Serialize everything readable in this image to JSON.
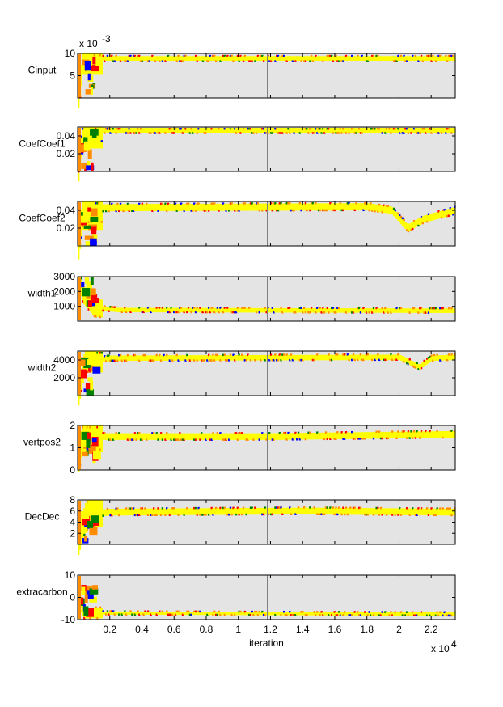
{
  "chart_data": {
    "type": "line",
    "xlabel": "iteration",
    "x_exponent_label": "x 10",
    "x_exponent_power": "4",
    "xlim": [
      0,
      23500
    ],
    "x_ticks": [
      2000,
      4000,
      6000,
      8000,
      10000,
      12000,
      14000,
      16000,
      18000,
      20000,
      22000
    ],
    "x_tick_labels": [
      "0.2",
      "0.4",
      "0.6",
      "0.8",
      "1",
      "1.2",
      "1.4",
      "1.6",
      "1.8",
      "2",
      "2.2"
    ],
    "vertical_marker_x": 11800,
    "colors": {
      "trace": "#ffff00",
      "band": "#ff8c00",
      "outlier1": "#ff0000",
      "outlier2": "#0000ff",
      "outlier3": "#008000",
      "bg": "#e4e4e4"
    },
    "panels": [
      {
        "ylabel": "Cinput",
        "ylim": [
          0,
          0.01
        ],
        "ticks": [
          0.005,
          0.01
        ],
        "tick_labels": [
          "5",
          "10"
        ],
        "scale_label": "x 10",
        "scale_power": "-3",
        "trend": [
          [
            0,
            0.0
          ],
          [
            300,
            0.0085
          ],
          [
            1500,
            0.0088
          ],
          [
            23500,
            0.0088
          ]
        ],
        "spread": 0.0006
      },
      {
        "ylabel": "CoefCoef1",
        "ylim": [
          0,
          0.05
        ],
        "ticks": [
          0.02,
          0.04
        ],
        "tick_labels": [
          "0.02",
          "0.04"
        ],
        "trend": [
          [
            0,
            0.0
          ],
          [
            300,
            0.045
          ],
          [
            1500,
            0.046
          ],
          [
            23500,
            0.046
          ]
        ],
        "spread": 0.003
      },
      {
        "ylabel": "CoefCoef2",
        "ylim": [
          0,
          0.05
        ],
        "ticks": [
          0.02,
          0.04
        ],
        "tick_labels": [
          "0.02",
          "0.04"
        ],
        "trend": [
          [
            0,
            0.0
          ],
          [
            300,
            0.042
          ],
          [
            2000,
            0.043
          ],
          [
            18000,
            0.044
          ],
          [
            19500,
            0.04
          ],
          [
            20500,
            0.02
          ],
          [
            21500,
            0.03
          ],
          [
            23500,
            0.04
          ]
        ],
        "spread": 0.004
      },
      {
        "ylabel": "width1",
        "ylim": [
          0,
          3000
        ],
        "ticks": [
          1000,
          2000,
          3000
        ],
        "tick_labels": [
          "1000",
          "2000",
          "3000"
        ],
        "trend": [
          [
            0,
            3000
          ],
          [
            300,
            1800
          ],
          [
            1000,
            900
          ],
          [
            2500,
            750
          ],
          [
            23500,
            700
          ]
        ],
        "spread": 150
      },
      {
        "ylabel": "width2",
        "ylim": [
          0,
          5000
        ],
        "ticks": [
          2000,
          4000
        ],
        "tick_labels": [
          "2000",
          "4000"
        ],
        "trend": [
          [
            0,
            0
          ],
          [
            400,
            3800
          ],
          [
            2000,
            4200
          ],
          [
            20000,
            4300
          ],
          [
            21200,
            3200
          ],
          [
            22000,
            4200
          ],
          [
            23500,
            4300
          ]
        ],
        "spread": 300
      },
      {
        "ylabel": "vertpos2",
        "ylim": [
          0,
          2
        ],
        "ticks": [
          0,
          1,
          2
        ],
        "tick_labels": [
          "0",
          "1",
          "2"
        ],
        "trend": [
          [
            0,
            0.5
          ],
          [
            300,
            1.6
          ],
          [
            1500,
            1.5
          ],
          [
            12000,
            1.5
          ],
          [
            23500,
            1.6
          ]
        ],
        "spread": 0.15
      },
      {
        "ylabel": "DecDec",
        "ylim": [
          0,
          8
        ],
        "ticks": [
          2,
          4,
          6,
          8
        ],
        "tick_labels": [
          "2",
          "4",
          "6",
          "8"
        ],
        "trend": [
          [
            0,
            0.5
          ],
          [
            500,
            5.5
          ],
          [
            2000,
            5.8
          ],
          [
            14000,
            6.0
          ],
          [
            23500,
            5.8
          ]
        ],
        "spread": 0.6
      },
      {
        "ylabel": "extracarbon",
        "ylim": [
          -10,
          10
        ],
        "ticks": [
          -10,
          0,
          10
        ],
        "tick_labels": [
          "-10",
          "0",
          "10"
        ],
        "trend": [
          [
            0,
            5
          ],
          [
            300,
            -7
          ],
          [
            23500,
            -7.5
          ]
        ],
        "spread": 0.6
      }
    ]
  }
}
